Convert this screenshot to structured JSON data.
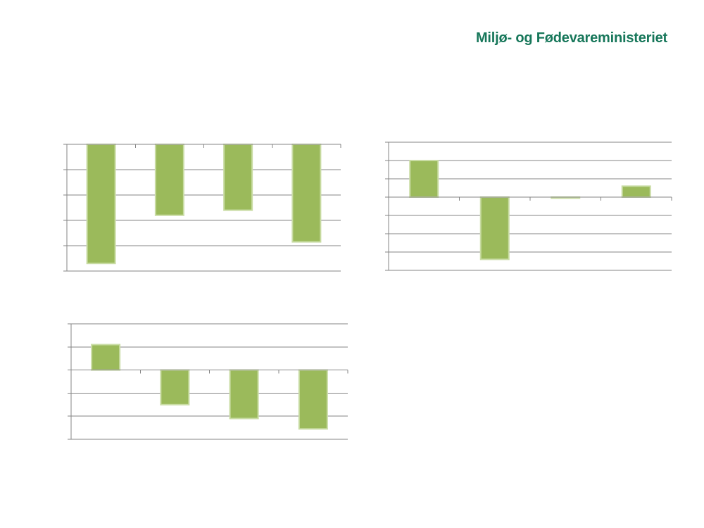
{
  "header": {
    "title": "Miljø- og Fødevareministeriet"
  },
  "colors": {
    "header_green": "#17775A",
    "bar_fill": "#9BBA5B",
    "bar_border": "#C9DCA4",
    "axis_gray": "#868686",
    "background": "#FFFFFF"
  },
  "chart_data": [
    {
      "id": "top-left-bar-chart",
      "type": "bar",
      "title": "",
      "xlabel": "",
      "ylabel": "",
      "categories": [
        "",
        "",
        "",
        ""
      ],
      "values": [
        -4.7,
        -2.8,
        -2.6,
        -3.85
      ],
      "ylim": [
        -5,
        0
      ],
      "gridline_step": 1,
      "grid": true,
      "legend": "none",
      "axis_labels_visible": false,
      "zero_axis_position": "top"
    },
    {
      "id": "top-right-bar-chart",
      "type": "bar",
      "title": "",
      "xlabel": "",
      "ylabel": "",
      "categories": [
        "",
        "",
        "",
        ""
      ],
      "values": [
        2.0,
        -3.4,
        -0.06,
        0.6
      ],
      "ylim": [
        -4,
        3
      ],
      "gridline_step": 1,
      "grid": true,
      "legend": "none",
      "axis_labels_visible": false,
      "zero_axis_position": "middle"
    },
    {
      "id": "bottom-left-bar-chart",
      "type": "bar",
      "title": "",
      "xlabel": "",
      "ylabel": "",
      "categories": [
        "",
        "",
        "",
        ""
      ],
      "values": [
        1.1,
        -1.5,
        -2.1,
        -2.55
      ],
      "ylim": [
        -3,
        2
      ],
      "gridline_step": 1,
      "grid": true,
      "legend": "none",
      "axis_labels_visible": false,
      "zero_axis_position": "middle"
    }
  ]
}
